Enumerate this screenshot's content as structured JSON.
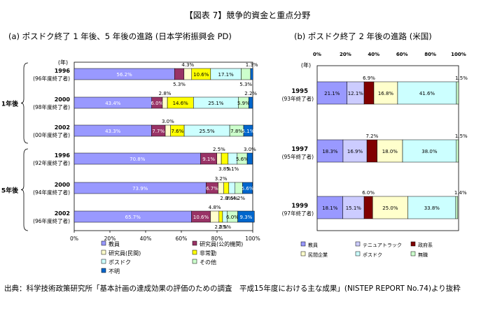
{
  "title": "【図表 7】競争的資金と重点分野",
  "source": "出典：科学技術政策研究所「基本計画の達成効果の評価のための調査　平成15年度における主な成果」(NISTEP REPORT No.74)より抜粋",
  "colors": {
    "faculty": "#9999ff",
    "public_researcher": "#993366",
    "private_researcher": "#ffffcc",
    "postdoc": "#ccffff",
    "part_time": "#ffff00",
    "other": "#ccffcc",
    "unknown": "#0066cc",
    "technician": "#ccccff",
    "government": "#800000",
    "private_company": "#ffffcc",
    "unemployed": "#ccffcc"
  },
  "chart_data": [
    {
      "type": "bar",
      "stacked": "horizontal-100%",
      "title": "(a) ポスドク終了 1 年後、5 年後の進路 (日本学術振興会 PD)",
      "unit_label": "(年)",
      "xlim": [
        0,
        100
      ],
      "x_ticks": [
        "0%",
        "20%",
        "40%",
        "60%",
        "80%",
        "100%"
      ],
      "groups": [
        {
          "label": "1年後",
          "rows": [
            0,
            1,
            2
          ]
        },
        {
          "label": "5年後",
          "rows": [
            3,
            4,
            5
          ]
        }
      ],
      "categories": [
        {
          "year": "1996",
          "note": "(96年度終了者)"
        },
        {
          "year": "2000",
          "note": "(98年度終了者)"
        },
        {
          "year": "2002",
          "note": "(00年度終了者)"
        },
        {
          "year": "1996",
          "note": "(92年度終了者)"
        },
        {
          "year": "2000",
          "note": "(94年度終了者)"
        },
        {
          "year": "2002",
          "note": "(96年度終了者)"
        }
      ],
      "series": [
        {
          "name": "教員",
          "key": "faculty",
          "values": [
            56.2,
            43.4,
            43.3,
            70.8,
            73.9,
            65.7
          ]
        },
        {
          "name": "研究員(公的機関)",
          "key": "public_researcher",
          "values": [
            5.3,
            6.0,
            7.7,
            9.1,
            6.7,
            10.6
          ]
        },
        {
          "name": "研究員(民間)",
          "key": "private_researcher",
          "values": [
            4.3,
            2.8,
            3.0,
            2.5,
            3.2,
            4.8
          ]
        },
        {
          "name": "非常勤",
          "key": "part_time",
          "values": [
            10.6,
            14.6,
            7.6,
            3.8,
            2.8,
            2.0
          ]
        },
        {
          "name": "ポスドク",
          "key": "postdoc",
          "values": [
            17.1,
            25.1,
            25.5,
            5.1,
            3.5,
            2.5
          ]
        },
        {
          "name": "その他",
          "key": "other",
          "values": [
            5.3,
            5.9,
            7.8,
            5.6,
            4.2,
            6.0
          ]
        },
        {
          "name": "不明",
          "key": "unknown",
          "values": [
            1.3,
            2.2,
            5.1,
            3.0,
            5.6,
            9.3
          ]
        }
      ],
      "labels": [
        [
          "56.2%",
          "5.3%",
          "4.3%",
          "10.6%",
          "17.1%",
          "5.3%",
          "1.3%"
        ],
        [
          "43.4%",
          "6.0%",
          "2.8%",
          "14.6%",
          "25.1%",
          "5.9%",
          "2.2%"
        ],
        [
          "43.3%",
          "7.7%",
          "3.0%",
          "7.6%",
          "25.5%",
          "7.8%",
          "5.1%"
        ],
        [
          "70.8%",
          "9.1%",
          "2.5%",
          "3.8%",
          "5.1%",
          "5.6%",
          "3.0%"
        ],
        [
          "73.9%",
          "6.7%",
          "3.2%",
          "2.8%",
          "3.5%",
          "4.2%",
          "5.6%"
        ],
        [
          "65.7%",
          "10.6%",
          "4.8%",
          "2.0%",
          "2.5%",
          "6.0%",
          "9.3%"
        ]
      ],
      "legend": [
        "faculty",
        "public_researcher",
        "private_researcher",
        "part_time",
        "postdoc",
        "other",
        "unknown"
      ],
      "legend_placement": "bottom"
    },
    {
      "type": "bar",
      "stacked": "horizontal-100%",
      "title": "(b) ポスドク終了 2 年後の進路 (米国)",
      "unit_label": "(年)",
      "xlim": [
        0,
        100
      ],
      "x_ticks": [
        "0%",
        "20%",
        "40%",
        "60%",
        "80%",
        "100%"
      ],
      "categories": [
        {
          "year": "1995",
          "note": "(93年終了者)"
        },
        {
          "year": "1997",
          "note": "(95年終了者)"
        },
        {
          "year": "1999",
          "note": "(97年終了者)"
        }
      ],
      "series": [
        {
          "name": "教員",
          "key": "faculty",
          "values": [
            21.1,
            18.3,
            18.1
          ]
        },
        {
          "name": "テニュアトラック",
          "key": "technician",
          "values": [
            12.1,
            16.9,
            15.1
          ]
        },
        {
          "name": "政府系",
          "key": "government",
          "values": [
            6.9,
            7.2,
            6.0
          ]
        },
        {
          "name": "民間企業",
          "key": "private_company",
          "values": [
            16.8,
            18.0,
            25.0
          ]
        },
        {
          "name": "ポスドク",
          "key": "postdoc",
          "values": [
            41.6,
            38.0,
            33.8
          ]
        },
        {
          "name": "無職",
          "key": "unemployed",
          "values": [
            1.5,
            1.5,
            1.4
          ]
        }
      ],
      "labels": [
        [
          "21.1%",
          "12.1%",
          "6.9%",
          "16.8%",
          "41.6%",
          "1.5%"
        ],
        [
          "18.3%",
          "16.9%",
          "7.2%",
          "18.0%",
          "38.0%",
          "1.5%"
        ],
        [
          "18.1%",
          "15.1%",
          "6.0%",
          "25.0%",
          "33.8%",
          "1.4%"
        ]
      ],
      "legend": [
        "faculty",
        "technician",
        "government",
        "private_company",
        "postdoc",
        "unemployed"
      ],
      "legend_placement": "bottom"
    }
  ]
}
